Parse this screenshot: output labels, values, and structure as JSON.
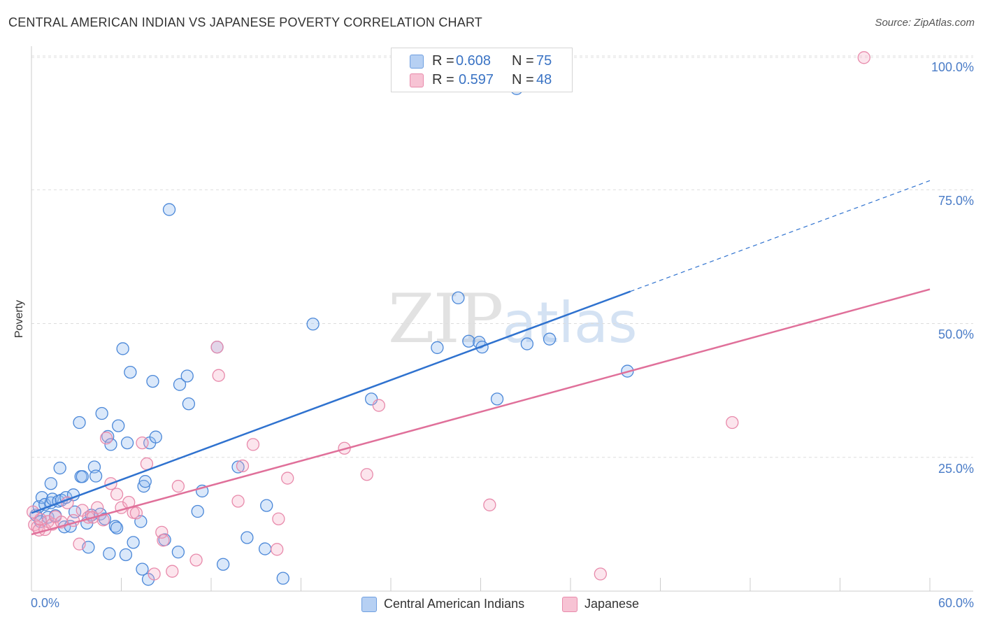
{
  "title": "CENTRAL AMERICAN INDIAN VS JAPANESE POVERTY CORRELATION CHART",
  "source": "Source: ZipAtlas.com",
  "watermark": {
    "zip": "ZIP",
    "atlas": "atlas"
  },
  "legend": {
    "series": [
      {
        "name": "Central American Indians",
        "r_label": "R =",
        "r_value": "0.608",
        "n_label": "N =",
        "n_value": "75",
        "fill": "#b6d0f3",
        "stroke": "#6f9fe0"
      },
      {
        "name": "Japanese",
        "r_label": "R =",
        "r_value": "0.597",
        "n_label": "N =",
        "n_value": "48",
        "fill": "#f7c3d4",
        "stroke": "#e88aab"
      }
    ]
  },
  "chart_data": {
    "type": "scatter",
    "title": "CENTRAL AMERICAN INDIAN VS JAPANESE POVERTY CORRELATION CHART",
    "xlabel": "",
    "ylabel": "Poverty",
    "xlim": [
      0,
      60
    ],
    "ylim": [
      0,
      100
    ],
    "x_tick_labels": [
      "0.0%",
      "60.0%"
    ],
    "y_tick_labels": [
      "25.0%",
      "50.0%",
      "75.0%",
      "100.0%"
    ],
    "y_tick_values": [
      25,
      50,
      75,
      100
    ],
    "grid": true,
    "series": [
      {
        "name": "Central American Indians",
        "color": "#4a87d8",
        "line_color": "#2f72cf",
        "trend": {
          "x0": 0,
          "y0": 14.6,
          "x1": 40,
          "y1": 56.0,
          "x_dash_end": 60,
          "y_dash_end": 76.7
        },
        "points": [
          [
            0.3,
            14.2
          ],
          [
            0.5,
            15.8
          ],
          [
            0.6,
            13.0
          ],
          [
            0.7,
            17.5
          ],
          [
            0.9,
            16.2
          ],
          [
            1.1,
            13.8
          ],
          [
            1.3,
            16.5
          ],
          [
            1.4,
            17.2
          ],
          [
            1.3,
            20.1
          ],
          [
            1.6,
            14.1
          ],
          [
            1.8,
            16.8
          ],
          [
            2.0,
            17.0
          ],
          [
            1.9,
            23.0
          ],
          [
            2.3,
            17.5
          ],
          [
            2.2,
            12.0
          ],
          [
            2.6,
            12.1
          ],
          [
            2.8,
            18.0
          ],
          [
            2.9,
            14.8
          ],
          [
            3.2,
            31.5
          ],
          [
            3.3,
            21.4
          ],
          [
            3.4,
            21.4
          ],
          [
            3.7,
            12.7
          ],
          [
            3.8,
            8.2
          ],
          [
            4.0,
            14.2
          ],
          [
            4.2,
            23.2
          ],
          [
            4.3,
            21.5
          ],
          [
            4.6,
            14.4
          ],
          [
            4.7,
            33.2
          ],
          [
            4.9,
            13.5
          ],
          [
            5.1,
            28.9
          ],
          [
            5.2,
            7.0
          ],
          [
            5.3,
            27.4
          ],
          [
            5.6,
            12.1
          ],
          [
            5.7,
            11.8
          ],
          [
            5.8,
            30.9
          ],
          [
            6.1,
            45.3
          ],
          [
            6.3,
            6.8
          ],
          [
            6.4,
            27.7
          ],
          [
            6.6,
            40.9
          ],
          [
            6.8,
            9.1
          ],
          [
            7.3,
            13.0
          ],
          [
            7.4,
            4.1
          ],
          [
            7.5,
            19.6
          ],
          [
            7.6,
            20.5
          ],
          [
            7.8,
            2.2
          ],
          [
            7.9,
            27.7
          ],
          [
            8.1,
            39.2
          ],
          [
            8.3,
            28.8
          ],
          [
            8.9,
            9.6
          ],
          [
            9.2,
            71.3
          ],
          [
            9.8,
            7.3
          ],
          [
            9.9,
            38.6
          ],
          [
            10.4,
            40.2
          ],
          [
            10.5,
            35.0
          ],
          [
            11.1,
            14.9
          ],
          [
            11.4,
            18.7
          ],
          [
            12.4,
            45.6
          ],
          [
            12.8,
            5.0
          ],
          [
            13.8,
            23.2
          ],
          [
            14.4,
            10.0
          ],
          [
            15.6,
            7.9
          ],
          [
            15.7,
            16.0
          ],
          [
            16.8,
            2.4
          ],
          [
            18.8,
            49.9
          ],
          [
            22.7,
            35.9
          ],
          [
            27.1,
            45.5
          ],
          [
            28.5,
            54.8
          ],
          [
            29.2,
            46.7
          ],
          [
            29.9,
            46.5
          ],
          [
            30.1,
            45.6
          ],
          [
            31.1,
            35.9
          ],
          [
            33.1,
            46.2
          ],
          [
            34.6,
            47.1
          ],
          [
            32.4,
            93.9
          ],
          [
            39.8,
            41.1
          ]
        ]
      },
      {
        "name": "Japanese",
        "color": "#e88aab",
        "line_color": "#e0709a",
        "trend": {
          "x0": 0,
          "y0": 10.6,
          "x1": 60,
          "y1": 56.4
        },
        "points": [
          [
            0.2,
            12.4
          ],
          [
            0.4,
            12.0
          ],
          [
            0.5,
            11.4
          ],
          [
            0.6,
            13.4
          ],
          [
            0.9,
            11.5
          ],
          [
            1.1,
            13.0
          ],
          [
            1.4,
            12.5
          ],
          [
            1.6,
            13.9
          ],
          [
            2.0,
            12.9
          ],
          [
            2.4,
            16.5
          ],
          [
            2.8,
            13.2
          ],
          [
            3.2,
            8.8
          ],
          [
            3.4,
            15.1
          ],
          [
            3.8,
            13.8
          ],
          [
            4.1,
            13.8
          ],
          [
            4.4,
            15.6
          ],
          [
            4.8,
            13.3
          ],
          [
            5.0,
            28.6
          ],
          [
            5.3,
            20.1
          ],
          [
            5.7,
            18.1
          ],
          [
            6.0,
            15.6
          ],
          [
            6.5,
            16.6
          ],
          [
            6.8,
            14.7
          ],
          [
            7.0,
            14.6
          ],
          [
            7.4,
            27.7
          ],
          [
            7.7,
            23.8
          ],
          [
            8.2,
            3.2
          ],
          [
            8.7,
            11.0
          ],
          [
            8.8,
            9.5
          ],
          [
            9.4,
            3.7
          ],
          [
            9.8,
            19.6
          ],
          [
            11.0,
            5.8
          ],
          [
            12.4,
            45.6
          ],
          [
            12.5,
            40.3
          ],
          [
            13.8,
            16.8
          ],
          [
            14.1,
            23.4
          ],
          [
            14.8,
            27.4
          ],
          [
            16.4,
            7.8
          ],
          [
            16.5,
            13.5
          ],
          [
            17.1,
            21.1
          ],
          [
            20.9,
            26.7
          ],
          [
            22.4,
            21.8
          ],
          [
            23.2,
            34.7
          ],
          [
            30.6,
            16.1
          ],
          [
            38.0,
            3.2
          ],
          [
            46.8,
            31.5
          ],
          [
            55.6,
            99.7
          ],
          [
            0.1,
            14.8
          ]
        ]
      }
    ]
  }
}
